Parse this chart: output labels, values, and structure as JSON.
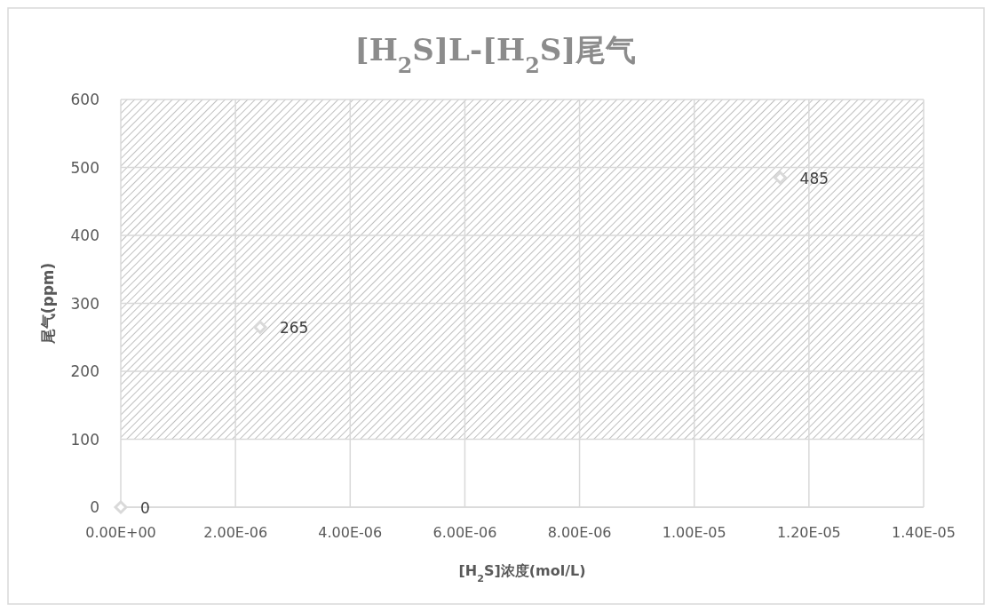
{
  "chart_data": {
    "type": "scatter",
    "title": "[H$_{2}$S]L-[H$_{2}$S]尾气",
    "xlabel": "[H$_{2}$S]浓度(mol/L)",
    "ylabel": "尾气(ppm)",
    "x": [
      0,
      2.43e-06,
      1.15e-05
    ],
    "series": [
      {
        "color": "#d9d9d9",
        "values": [
          0,
          265,
          485
        ]
      }
    ],
    "marker": "diamond",
    "data_labels": true,
    "grid": true,
    "xlim": [
      0,
      1.4e-05
    ],
    "ylim": [
      0,
      600
    ],
    "xticks": [
      {
        "value": 0,
        "label": "0.00E+00"
      },
      {
        "value": 2e-06,
        "label": "2.00E-06"
      },
      {
        "value": 4e-06,
        "label": "4.00E-06"
      },
      {
        "value": 6e-06,
        "label": "6.00E-06"
      },
      {
        "value": 8e-06,
        "label": "8.00E-06"
      },
      {
        "value": 1e-05,
        "label": "1.00E-05"
      },
      {
        "value": 1.2e-05,
        "label": "1.20E-05"
      },
      {
        "value": 1.4e-05,
        "label": "1.40E-05"
      }
    ],
    "yticks": [
      0,
      100,
      200,
      300,
      400,
      500,
      600
    ],
    "bands": [
      {
        "axis": "y",
        "from": 100,
        "to": 600,
        "color": "#bfbfbf"
      }
    ]
  }
}
